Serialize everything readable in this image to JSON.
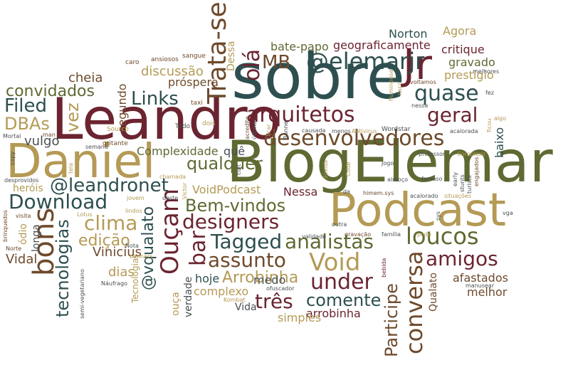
{
  "words": {
    "sobre": "sobre",
    "leandro": "Leandro",
    "blogelemar": "BlogElemar",
    "daniel": "Daniel",
    "podcast": "Podcast",
    "jr": "Jr",
    "elemarjr": "@elemarjr",
    "desenvolvedores": "desenvolvedores",
    "arquitetos": "arquitetos",
    "quase": "quase",
    "geral": "geral",
    "trata_se": "Trata-se",
    "ola": "olá",
    "mb": "MB",
    "links": "Links",
    "filed": "Filed",
    "convidados": "convidados",
    "dbas": "DBAs",
    "vulgo": "vulgo",
    "vez": "vez",
    "cheia": "cheia",
    "segundo": "segundo",
    "discussao": "discussão",
    "prospera": "próspera",
    "qualquer": "qualquer",
    "leandronet": "@leandronet",
    "download": "Download",
    "clima": "clima",
    "designers": "designers",
    "bem_vindos": "Bem-vindos",
    "tagged": "Tagged",
    "analistas": "analistas",
    "void": "Void",
    "loucos": "loucos",
    "amigos": "amigos",
    "bons": "bons",
    "oucam": "Ouçam",
    "bar": "bar",
    "assunto": "assunto",
    "tres": "três",
    "under": "under",
    "conversa": "conversa",
    "participe": "Participe",
    "comente": "comente",
    "arrobinha_cap": "Arrobinha",
    "arrobinha": "arrobinha",
    "tecnologias": "tecnologias",
    "edicao": "edição",
    "vinicius": "Vinicius",
    "vidal": "Vidal",
    "dias": "dias",
    "vqualato": "@vqualato",
    "complexidade": "Complexidade",
    "que": "quê",
    "voidpodcast": "VoidPodcast",
    "nessa": "Nessa",
    "medo": "medo",
    "hoje": "hoje",
    "complexo": "complexo",
    "vida": "Vida",
    "simples": "simples",
    "verdade": "verdade",
    "ouca": "ouça",
    "baixo": "baixo",
    "prestigio": "prestígio",
    "gravado": "gravado",
    "critique": "critique",
    "agora": "Agora",
    "norton": "Norton",
    "geograficamente": "geograficamente",
    "bate_papo": "bate-papo",
    "dessa": "Dessa",
    "afastados": "afastados",
    "melhor": "melhor",
    "qualato": "Qualato",
    "herois": "heróis",
    "odio": "ódio",
    "longa": "longa",
    "tecnologias_cap": "Tecnologias",
    "ansiosos": "ansiosos",
    "sangue": "sangue",
    "caro": "caro",
    "taxi": "taxi",
    "tudo": "Tudo",
    "dois": "dois",
    "source": "Source",
    "mortal": "Mortal",
    "man": "man",
    "gritante": "gritante",
    "semana": "semana",
    "copy": "copy",
    "tela": "tela",
    "chamada": "chamada",
    "desprovidos": "desprovidos",
    "visita": "visita",
    "lotus": "Lotus",
    "lindos": "lindos",
    "jovem": "jovem",
    "victor": "Victor",
    "deste": "deste",
    "norte": "Norte",
    "semi_vegetariano": "semi-vegetariano",
    "naufrago": "Náufrago",
    "banners": "banners",
    "nota": "Nota",
    "kombat": "Kombat",
    "ofuscador": "ofuscador",
    "brinquedos": "brinquedos",
    "cult": "cult",
    "acredite": "acredite",
    "ultima": "última",
    "clicar": "clicar",
    "banner": "Banner",
    "causada": "causada",
    "menos": "menos",
    "antivirus": "Antivirus",
    "wordstar": "Wordstar",
    "fluminense": "fluminense",
    "risco": "risco",
    "voltamos": "voltamos",
    "nessa_low": "nessa",
    "acalorada": "acalorada",
    "fez": "fez",
    "algo": "algo",
    "ficou": "ficou",
    "melhores": "melhores",
    "complexo_cap": "Complexo",
    "professor": "professor",
    "duvida": "dúvida",
    "code": "Code",
    "jogo": "Jogo",
    "acalorado": "acalorado",
    "famoso": "famoso",
    "situacoes": "situações",
    "almoco": "almoço",
    "himem": "himem.sys",
    "sys": "sys",
    "validade": "validade",
    "outra": "outra",
    "gravacao": "gravação",
    "familia": "família",
    "pode": "pode",
    "early": "early",
    "stunts": "stunts",
    "turista": "turista",
    "engajados": "engajados",
    "vga": "vga",
    "manusear": "manusear",
    "da": "da",
    "bebida": "bebida"
  },
  "colors": {
    "teal": "#2e4f4f",
    "maroon": "#6b2430",
    "olive": "#5e6a32",
    "tan": "#b49a55",
    "brown": "#6e4a2c",
    "gray": "#4a4f52",
    "background": "#ffffff"
  }
}
